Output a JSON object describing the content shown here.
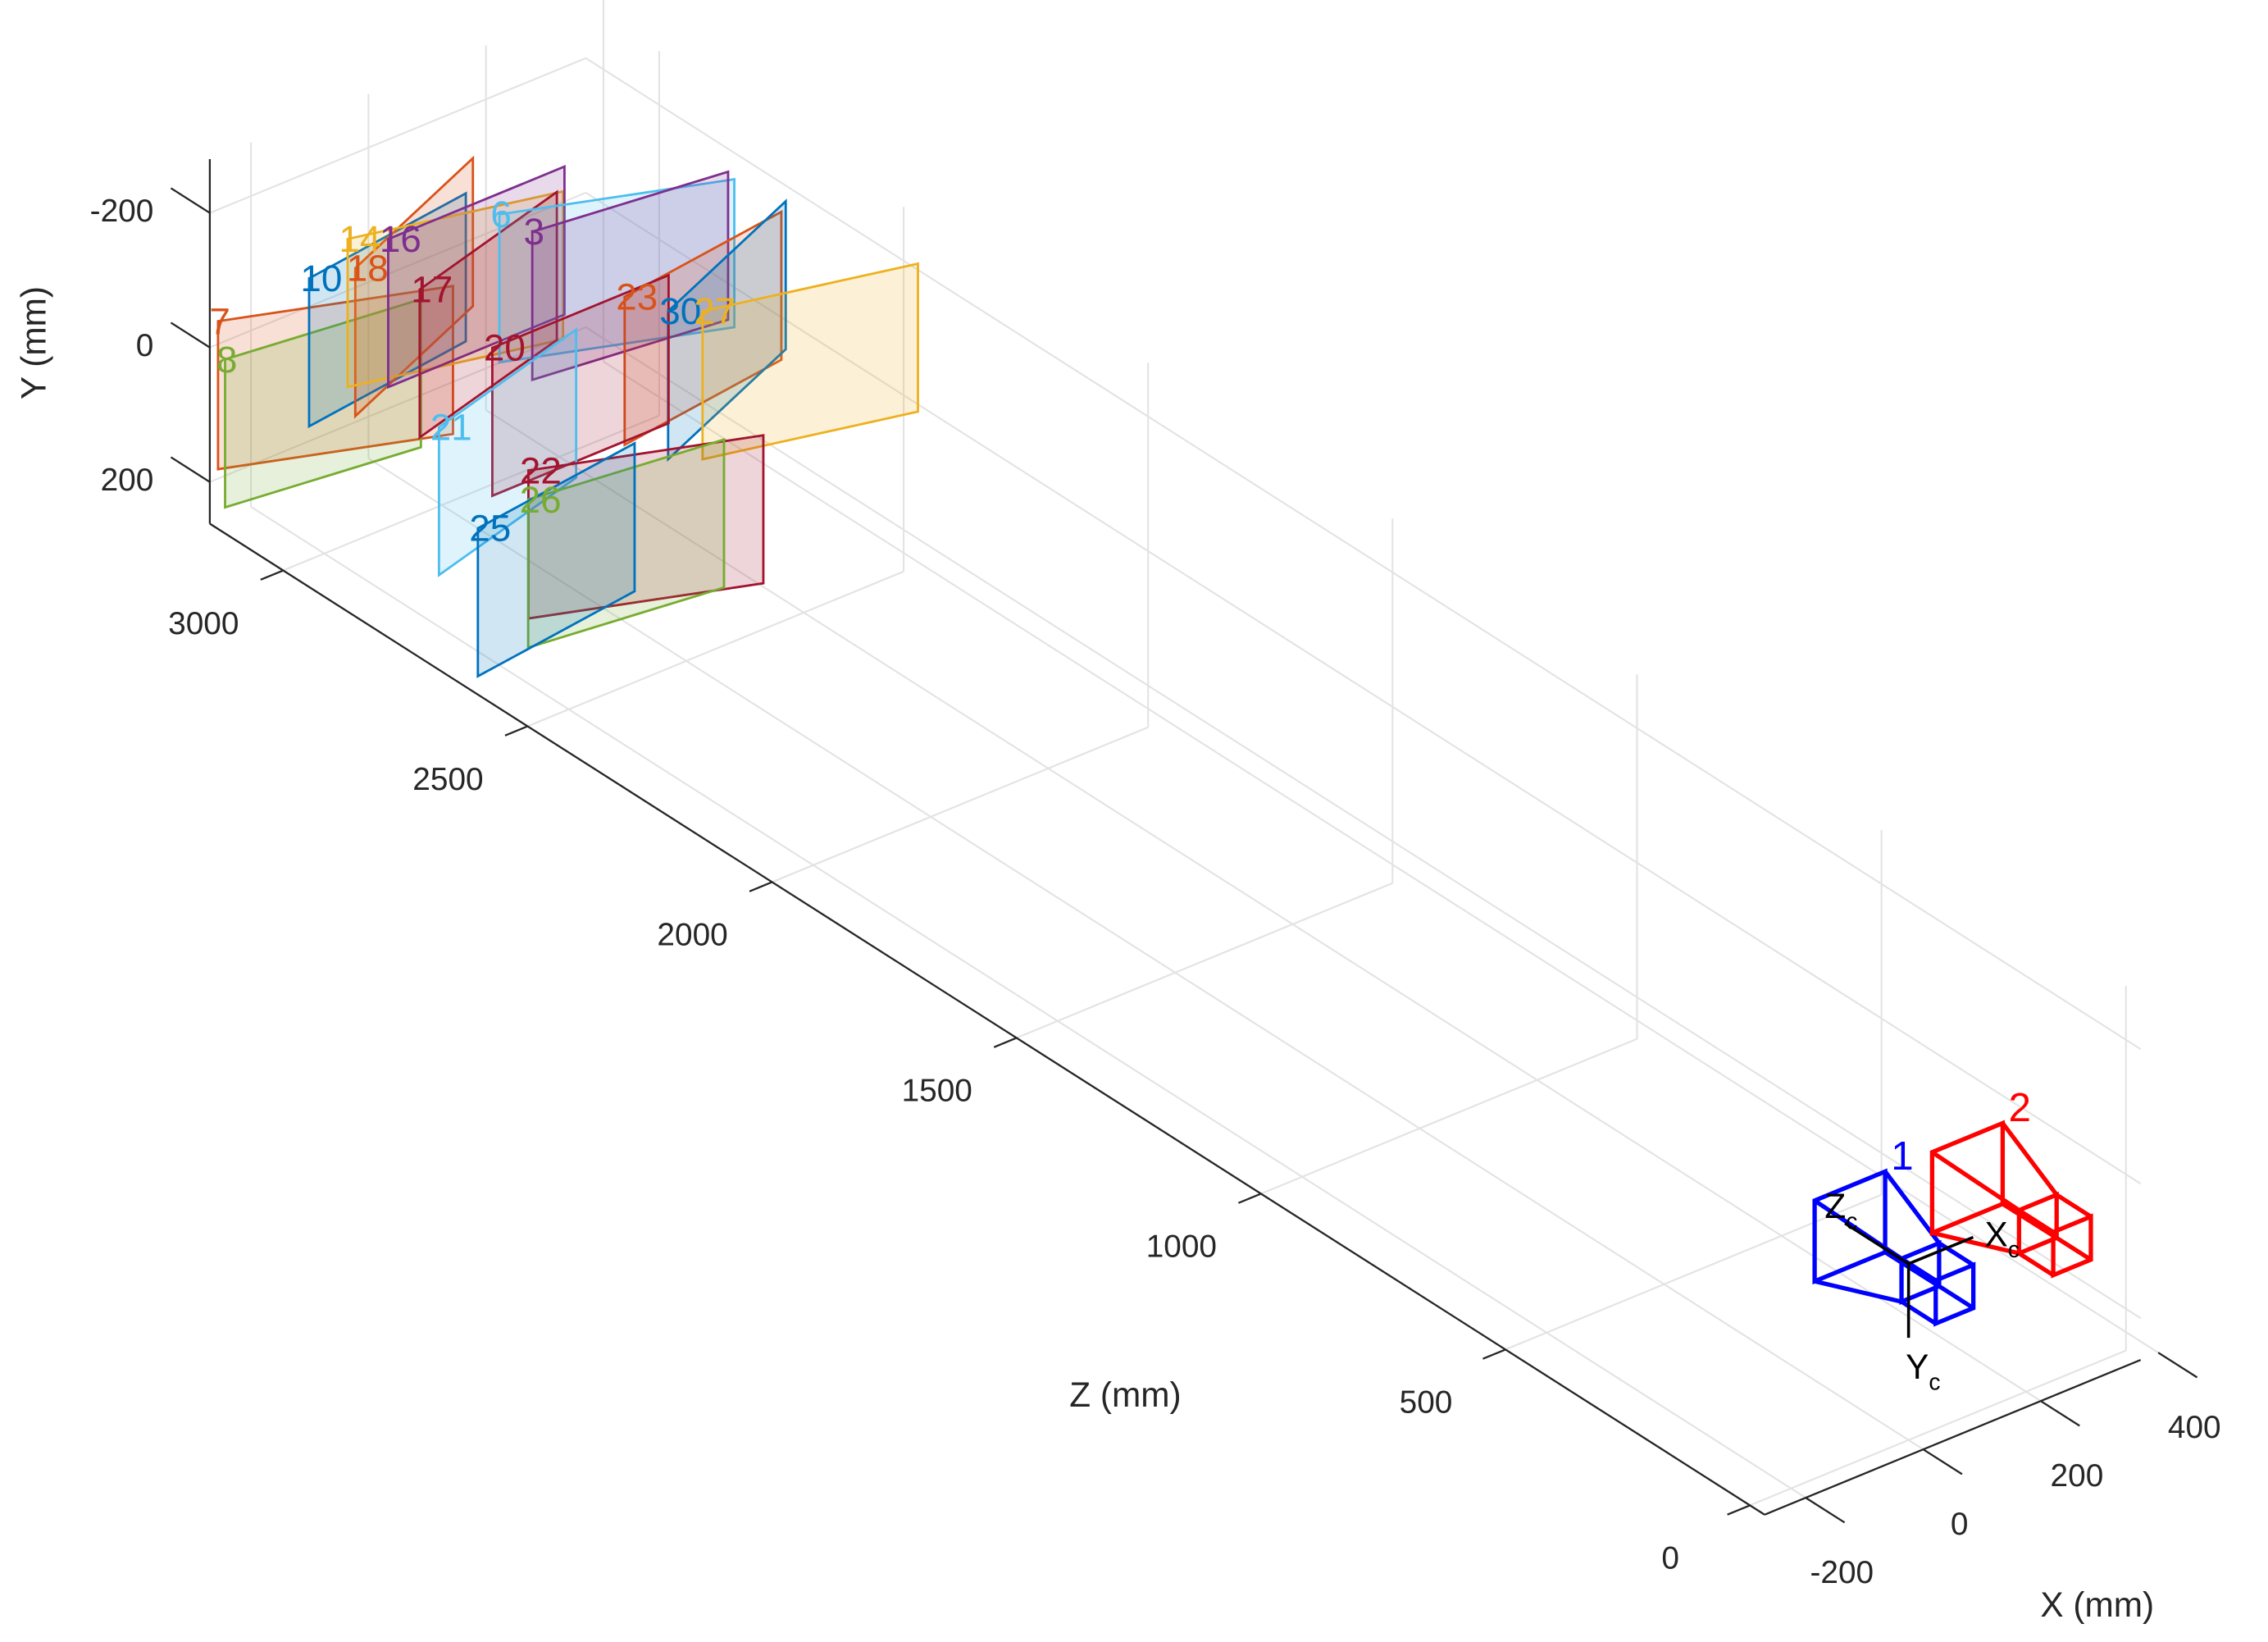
{
  "chart_data": {
    "type": "extrinsics3d",
    "xlabel": "X (mm)",
    "ylabel": "Y (mm)",
    "zlabel": "Z (mm)",
    "xlim": [
      -270,
      370
    ],
    "ylim": [
      -280,
      262
    ],
    "zlim": [
      -30,
      3150
    ],
    "xticks": [
      -200,
      0,
      200,
      400
    ],
    "yticks": [
      -200,
      0,
      200
    ],
    "zticks": [
      0,
      500,
      1000,
      1500,
      2000,
      2500,
      3000
    ],
    "ydir": "reverse",
    "grid": true,
    "cameras": [
      {
        "label": "1",
        "color": "#0000ff",
        "position": [
          0,
          0,
          0
        ]
      },
      {
        "label": "2",
        "color": "#ff0000",
        "position": [
          200,
          0,
          0
        ]
      }
    ],
    "camera_axis_labels": [
      {
        "text": "X",
        "subscript": "c"
      },
      {
        "text": "Y",
        "subscript": "c"
      },
      {
        "text": "Z",
        "subscript": "c"
      }
    ],
    "boards": [
      {
        "label": "7",
        "color": "#d95319",
        "origin": [
          -256,
          -34,
          3150
        ]
      },
      {
        "label": "8",
        "color": "#77ac30",
        "origin": [
          -244,
          27,
          3150
        ]
      },
      {
        "label": "10",
        "color": "#0072bd",
        "origin": [
          -101,
          -42,
          3150
        ]
      },
      {
        "label": "18",
        "color": "#d95319",
        "origin": [
          -64,
          -67,
          3100
        ]
      },
      {
        "label": "14",
        "color": "#edb120",
        "origin": [
          -77,
          -115,
          3100
        ]
      },
      {
        "label": "16",
        "color": "#7e2f8e",
        "origin": [
          -8,
          -90,
          3100
        ]
      },
      {
        "label": "17",
        "color": "#a2142f",
        "origin": [
          4,
          -34,
          3050
        ]
      },
      {
        "label": "6",
        "color": "#4dbeee",
        "origin": [
          98,
          -135,
          3000
        ]
      },
      {
        "label": "3",
        "color": "#7e2f8e",
        "origin": [
          154,
          -89,
          3000
        ]
      },
      {
        "label": "23",
        "color": "#d95319",
        "origin": [
          228,
          -12,
          2900
        ]
      },
      {
        "label": "30",
        "color": "#0072bd",
        "origin": [
          302,
          36,
          2900
        ]
      },
      {
        "label": "27",
        "color": "#edb120",
        "origin": [
          319,
          19,
          2850
        ]
      },
      {
        "label": "20",
        "color": "#a2142f",
        "origin": [
          86,
          59,
          3000
        ]
      },
      {
        "label": "21",
        "color": "#4dbeee",
        "origin": [
          -88,
          68,
          2900
        ]
      },
      {
        "label": "22",
        "color": "#a2142f",
        "origin": [
          -19,
          111,
          2800
        ]
      },
      {
        "label": "26",
        "color": "#77ac30",
        "origin": [
          -61,
          116,
          2750
        ]
      },
      {
        "label": "25",
        "color": "#0072bd",
        "origin": [
          -105,
          166,
          2800
        ]
      }
    ]
  }
}
